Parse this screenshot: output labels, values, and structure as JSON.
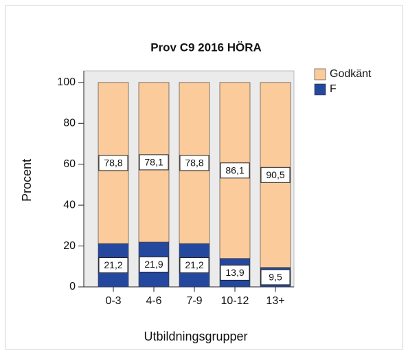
{
  "chart_data": {
    "type": "stacked_bar",
    "title": "Prov C9 2016 HÖRA",
    "x_label": "Utbildningsgrupper",
    "y_label": "Procent",
    "categories": [
      "0-3",
      "4-6",
      "7-9",
      "10-12",
      "13+"
    ],
    "series": [
      {
        "name": "F",
        "color": "#24489e",
        "values": [
          21.2,
          21.9,
          21.2,
          13.9,
          9.5
        ],
        "value_labels": [
          "21,2",
          "21,9",
          "21,2",
          "13,9",
          "9,5"
        ]
      },
      {
        "name": "Godkänt",
        "color": "#fbcb9c",
        "values": [
          78.8,
          78.1,
          78.8,
          86.1,
          90.5
        ],
        "value_labels": [
          "78,8",
          "78,1",
          "78,8",
          "86,1",
          "90,5"
        ]
      }
    ],
    "ylim": [
      0,
      105
    ],
    "yticks": [
      0,
      20,
      40,
      60,
      80,
      100
    ],
    "legend": "right"
  }
}
